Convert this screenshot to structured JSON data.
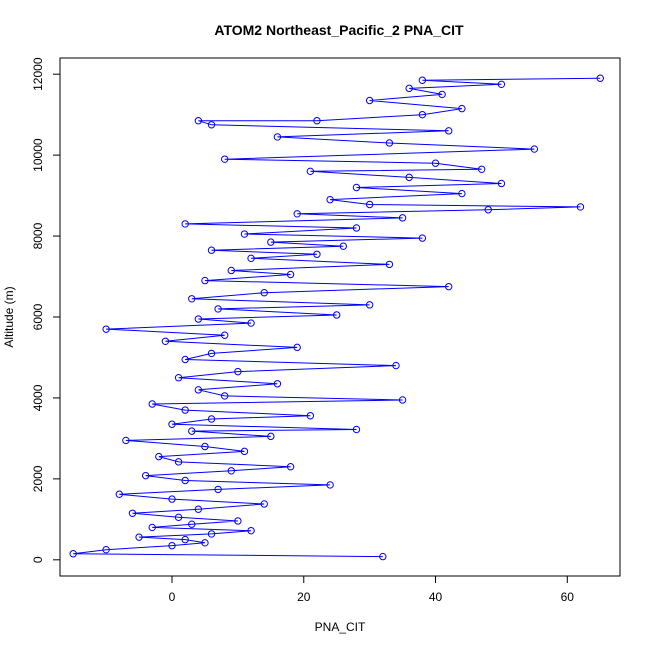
{
  "chart_data": {
    "type": "scatter",
    "title": "ATOM2 Northeast_Pacific_2 PNA_CIT",
    "xlabel": "PNA_CIT",
    "ylabel": "Altitude (m)",
    "xlim": [
      -17,
      68
    ],
    "ylim": [
      -400,
      12400
    ],
    "x_ticks": [
      0,
      20,
      40,
      60
    ],
    "y_ticks": [
      0,
      2000,
      4000,
      6000,
      8000,
      10000,
      12000
    ],
    "grid": false,
    "marker": "open-circle",
    "connected": true,
    "series": [
      {
        "color": "#0000ff",
        "points": [
          [
            32,
            80
          ],
          [
            -15,
            150
          ],
          [
            -10,
            250
          ],
          [
            0,
            350
          ],
          [
            5,
            420
          ],
          [
            2,
            500
          ],
          [
            -5,
            560
          ],
          [
            6,
            640
          ],
          [
            12,
            720
          ],
          [
            -3,
            800
          ],
          [
            3,
            880
          ],
          [
            10,
            960
          ],
          [
            1,
            1050
          ],
          [
            -6,
            1150
          ],
          [
            4,
            1250
          ],
          [
            14,
            1380
          ],
          [
            0,
            1500
          ],
          [
            -8,
            1620
          ],
          [
            7,
            1740
          ],
          [
            24,
            1850
          ],
          [
            2,
            1960
          ],
          [
            -4,
            2080
          ],
          [
            9,
            2200
          ],
          [
            18,
            2300
          ],
          [
            1,
            2420
          ],
          [
            -2,
            2550
          ],
          [
            11,
            2680
          ],
          [
            5,
            2800
          ],
          [
            -7,
            2950
          ],
          [
            15,
            3050
          ],
          [
            3,
            3180
          ],
          [
            28,
            3220
          ],
          [
            0,
            3350
          ],
          [
            6,
            3480
          ],
          [
            21,
            3560
          ],
          [
            2,
            3700
          ],
          [
            -3,
            3850
          ],
          [
            35,
            3950
          ],
          [
            8,
            4050
          ],
          [
            4,
            4200
          ],
          [
            16,
            4350
          ],
          [
            1,
            4500
          ],
          [
            10,
            4650
          ],
          [
            34,
            4800
          ],
          [
            2,
            4950
          ],
          [
            6,
            5100
          ],
          [
            19,
            5250
          ],
          [
            -1,
            5400
          ],
          [
            8,
            5550
          ],
          [
            -10,
            5700
          ],
          [
            12,
            5850
          ],
          [
            4,
            5950
          ],
          [
            25,
            6050
          ],
          [
            7,
            6200
          ],
          [
            30,
            6300
          ],
          [
            3,
            6450
          ],
          [
            14,
            6600
          ],
          [
            42,
            6750
          ],
          [
            5,
            6900
          ],
          [
            18,
            7050
          ],
          [
            9,
            7150
          ],
          [
            33,
            7300
          ],
          [
            12,
            7450
          ],
          [
            22,
            7550
          ],
          [
            6,
            7650
          ],
          [
            26,
            7750
          ],
          [
            15,
            7850
          ],
          [
            38,
            7950
          ],
          [
            11,
            8050
          ],
          [
            28,
            8200
          ],
          [
            2,
            8300
          ],
          [
            35,
            8450
          ],
          [
            19,
            8550
          ],
          [
            48,
            8650
          ],
          [
            62,
            8720
          ],
          [
            30,
            8780
          ],
          [
            24,
            8900
          ],
          [
            44,
            9050
          ],
          [
            28,
            9200
          ],
          [
            50,
            9300
          ],
          [
            36,
            9450
          ],
          [
            21,
            9600
          ],
          [
            47,
            9650
          ],
          [
            40,
            9800
          ],
          [
            8,
            9900
          ],
          [
            55,
            10150
          ],
          [
            33,
            10300
          ],
          [
            16,
            10450
          ],
          [
            42,
            10600
          ],
          [
            6,
            10750
          ],
          [
            4,
            10850
          ],
          [
            22,
            10850
          ],
          [
            38,
            11000
          ],
          [
            44,
            11150
          ],
          [
            30,
            11350
          ],
          [
            41,
            11500
          ],
          [
            36,
            11650
          ],
          [
            50,
            11750
          ],
          [
            38,
            11850
          ],
          [
            65,
            11900
          ]
        ]
      }
    ]
  }
}
